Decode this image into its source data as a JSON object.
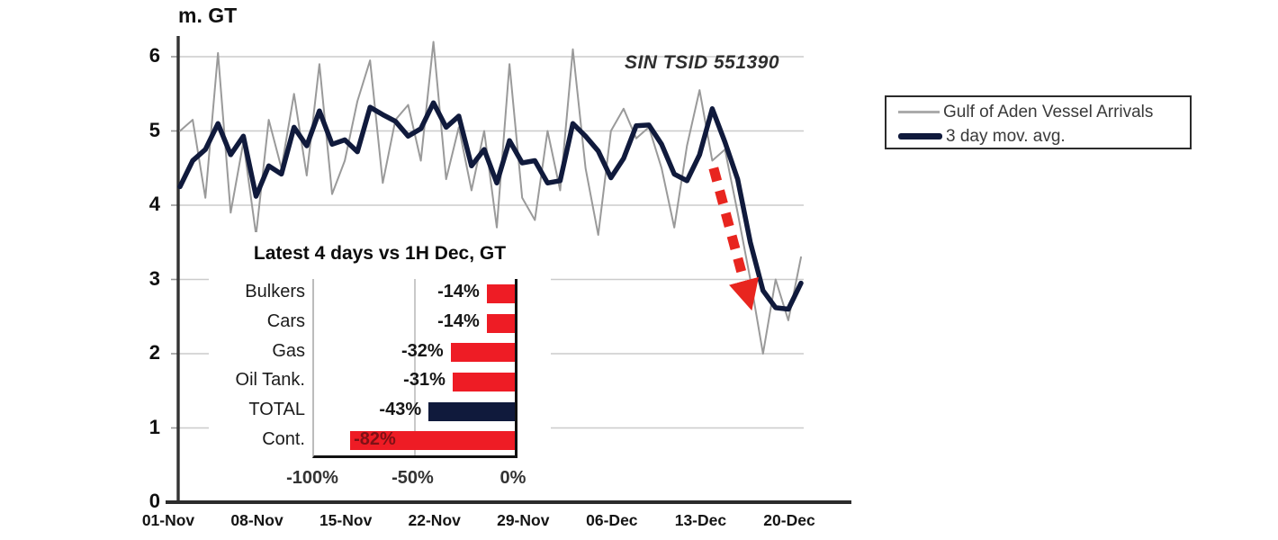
{
  "chart_data": [
    {
      "type": "line",
      "ylabel": "m. GT",
      "annotation": "SIN TSID 551390",
      "y_ticks": [
        0,
        1,
        2,
        3,
        4,
        5,
        6
      ],
      "y_gridlines": [
        1,
        2,
        3,
        4,
        5,
        6
      ],
      "ylim": [
        0,
        6.3
      ],
      "x_tick_labels": [
        "01-Nov",
        "08-Nov",
        "15-Nov",
        "22-Nov",
        "29-Nov",
        "06-Dec",
        "13-Dec",
        "20-Dec"
      ],
      "x_tick_days": [
        0,
        7,
        14,
        21,
        28,
        35,
        42,
        49
      ],
      "num_days": 50,
      "grid_color": "#cbcbcb",
      "axis_color": "#333333",
      "series": [
        {
          "name": "Gulf of Aden Vessel Arrivals",
          "color": "#9a9a9a",
          "width": 2,
          "values": [
            5.0,
            5.15,
            4.1,
            6.05,
            3.9,
            4.85,
            3.6,
            5.15,
            4.5,
            5.5,
            4.4,
            5.9,
            4.15,
            4.6,
            5.4,
            5.95,
            4.3,
            5.15,
            5.35,
            4.6,
            6.2,
            4.35,
            5.05,
            4.2,
            5.0,
            3.7,
            5.9,
            4.1,
            3.8,
            5.0,
            4.2,
            6.1,
            4.5,
            3.6,
            5.0,
            5.3,
            4.9,
            5.05,
            4.5,
            3.7,
            4.8,
            5.55,
            4.6,
            4.75,
            3.9,
            3.0,
            2.0,
            3.0,
            2.45,
            3.3
          ]
        },
        {
          "name": "3 day mov. avg.",
          "color": "#101a3c",
          "width": 5.5,
          "values": [
            4.25,
            4.6,
            4.75,
            5.1,
            4.68,
            4.93,
            4.12,
            4.53,
            4.42,
            5.05,
            4.8,
            5.27,
            4.82,
            4.88,
            4.72,
            5.32,
            5.22,
            5.13,
            4.93,
            5.03,
            5.38,
            5.05,
            5.2,
            4.53,
            4.75,
            4.3,
            4.87,
            4.57,
            4.6,
            4.3,
            4.33,
            5.1,
            4.93,
            4.73,
            4.37,
            4.63,
            5.07,
            5.08,
            4.82,
            4.42,
            4.33,
            4.68,
            5.3,
            4.85,
            4.35,
            3.5,
            2.85,
            2.62,
            2.6,
            2.95
          ]
        }
      ],
      "arrow_annotation": {
        "color": "#e8251f",
        "from_day": 42.1,
        "from_value": 4.5,
        "to_day": 44.9,
        "to_value": 2.72,
        "style": "dashed"
      },
      "legend": {
        "position": "right",
        "items": [
          {
            "label": "Gulf of Aden Vessel Arrivals",
            "color": "#ababab",
            "swatch_thickness": 2.5
          },
          {
            "label": "3 day mov. avg.",
            "color": "#101a3c",
            "swatch_thickness": 7
          }
        ]
      }
    },
    {
      "type": "bar",
      "orientation": "horizontal",
      "title": "Latest 4 days vs 1H Dec, GT",
      "categories": [
        "Bulkers",
        "Cars",
        "Gas",
        "Oil Tank.",
        "TOTAL",
        "Cont."
      ],
      "values": [
        -14,
        -14,
        -32,
        -31,
        -43,
        -82
      ],
      "value_labels": [
        "-14%",
        "-14%",
        "-32%",
        "-31%",
        "-43%",
        "-82%"
      ],
      "bar_colors": [
        "#ee1c25",
        "#ee1c25",
        "#ee1c25",
        "#ee1c25",
        "#101a3c",
        "#ee1c25"
      ],
      "x_ticks": [
        "-100%",
        "-50%",
        "0%"
      ],
      "x_tick_values": [
        -100,
        -50,
        0
      ],
      "xlim": [
        -100,
        0
      ],
      "grid_color": "#c9c9c9"
    }
  ]
}
